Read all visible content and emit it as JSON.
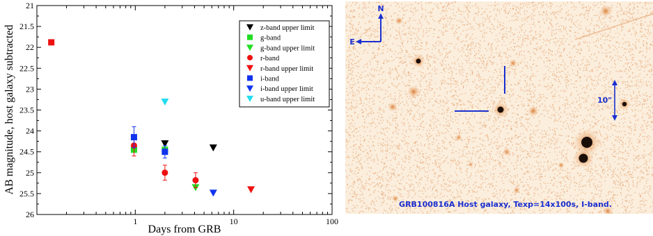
{
  "chart_data": {
    "type": "scatter",
    "xlabel": "Days from GRB",
    "ylabel": "AB magnitude, host galaxy subtracted",
    "xscale": "log",
    "xlim": [
      0.1,
      100
    ],
    "ylim": [
      26,
      21
    ],
    "y_inverted": true,
    "xticks": [
      "1",
      "10",
      "100"
    ],
    "yticks": [
      "21",
      "21.5",
      "22",
      "22.5",
      "23",
      "23.5",
      "24",
      "24.5",
      "25",
      "25.5",
      "26"
    ],
    "legend_position": "top-right",
    "series": [
      {
        "name": "z-band upper limit",
        "marker": "triangle-down",
        "color": "#000000",
        "points": [
          {
            "x": 2.0,
            "y": 24.3
          },
          {
            "x": 6.2,
            "y": 24.4
          }
        ]
      },
      {
        "name": "g-band",
        "marker": "square",
        "color": "#22dd22",
        "points": [
          {
            "x": 0.97,
            "y": 24.45
          },
          {
            "x": 2.0,
            "y": 24.45
          }
        ]
      },
      {
        "name": "g-band upper limit",
        "marker": "triangle-down",
        "color": "#22dd22",
        "points": [
          {
            "x": 4.1,
            "y": 25.35
          }
        ]
      },
      {
        "name": "r-band",
        "marker": "circle",
        "color": "#ee1111",
        "points": [
          {
            "x": 0.14,
            "y": 21.88,
            "marker": "square"
          },
          {
            "x": 0.97,
            "y": 24.35,
            "err": 0.25
          },
          {
            "x": 2.0,
            "y": 25.0,
            "err": 0.18
          },
          {
            "x": 4.1,
            "y": 25.18,
            "err": 0.18
          }
        ]
      },
      {
        "name": "r-band upper limit",
        "marker": "triangle-down",
        "color": "#ee1111",
        "points": [
          {
            "x": 15.0,
            "y": 25.4
          }
        ]
      },
      {
        "name": "i-band",
        "marker": "square",
        "color": "#1133ee",
        "points": [
          {
            "x": 0.97,
            "y": 24.15,
            "err": 0.25
          },
          {
            "x": 2.0,
            "y": 24.5,
            "err": 0.15
          }
        ]
      },
      {
        "name": "i-band upper limit",
        "marker": "triangle-down",
        "color": "#1133ee",
        "points": [
          {
            "x": 6.2,
            "y": 25.48
          }
        ]
      },
      {
        "name": "u-band upper limit",
        "marker": "triangle-down",
        "color": "#22ddee",
        "points": [
          {
            "x": 2.0,
            "y": 23.3
          }
        ]
      }
    ]
  },
  "image_panel": {
    "north_label": "N",
    "east_label": "E",
    "scale_label": "10\"",
    "caption": "GRB100816A Host galaxy, Texp=14x100s, I-band.",
    "background_color": "#fbeedd",
    "speckle_color": "#e8a06a",
    "marker_color": "#1a2fd0"
  }
}
